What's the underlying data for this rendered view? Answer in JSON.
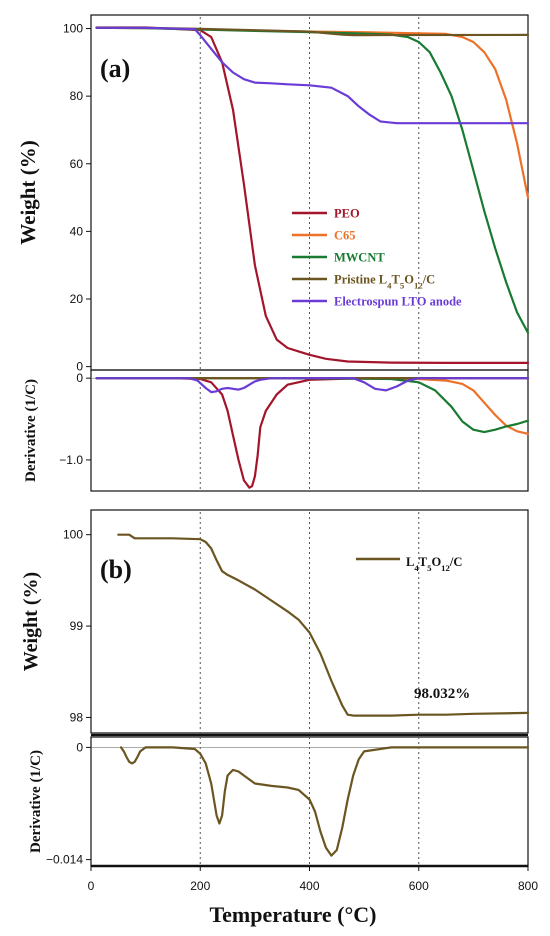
{
  "chart_data": [
    {
      "type": "line",
      "panel_label": "(a)",
      "xlabel": "Temperature (°C)",
      "x_ticks": [
        "0",
        "200",
        "400",
        "600",
        "800"
      ],
      "xlim": [
        0,
        800
      ],
      "gridlines_x": [
        200,
        400,
        600
      ],
      "legend_position": "center",
      "weight": {
        "ylabel": "Weight (%)",
        "ylim": [
          -1,
          104
        ],
        "y_ticks": [
          "0",
          "20",
          "40",
          "60",
          "80",
          "100"
        ],
        "series": [
          {
            "name": "PEO",
            "color": "#a3152a",
            "x": [
              10,
              100,
              200,
              220,
              240,
              260,
              280,
              300,
              320,
              340,
              360,
              380,
              400,
              430,
              470,
              550,
              650,
              800
            ],
            "y": [
              100.3,
              100.3,
              99.5,
              97.5,
              90,
              76,
              54,
              30,
              15,
              8,
              5.5,
              4.5,
              3.5,
              2.3,
              1.5,
              1.2,
              1.1,
              1.1
            ]
          },
          {
            "name": "C65",
            "color": "#ed7127",
            "x": [
              10,
              100,
              200,
              300,
              400,
              500,
              600,
              650,
              680,
              700,
              720,
              740,
              760,
              780,
              800
            ],
            "y": [
              100.2,
              100.1,
              99.8,
              99.4,
              99.1,
              98.9,
              98.6,
              98.4,
              97.5,
              96,
              93,
              88,
              79,
              66,
              50
            ]
          },
          {
            "name": "MWCNT",
            "color": "#197a32",
            "x": [
              10,
              100,
              200,
              300,
              400,
              500,
              550,
              580,
              600,
              620,
              640,
              660,
              680,
              700,
              720,
              740,
              760,
              780,
              800
            ],
            "y": [
              100.2,
              100.1,
              99.7,
              99.3,
              98.9,
              98.5,
              98.2,
              97.5,
              96,
              93,
              87,
              80,
              70,
              58,
              46,
              35,
              25,
              16,
              10
            ]
          },
          {
            "name": "Pristine L₄T₅O₁₂/C",
            "color": "#6b5521",
            "x": [
              10,
              100,
              200,
              300,
              400,
              460,
              480,
              500,
              800
            ],
            "y": [
              100.2,
              100.2,
              99.9,
              99.5,
              99.1,
              98.2,
              98.05,
              98.05,
              98.1
            ]
          },
          {
            "name": "Electrospun LTO anode",
            "color": "#6a3bd6",
            "x": [
              10,
              100,
              190,
              200,
              220,
              240,
              260,
              280,
              300,
              330,
              360,
              400,
              440,
              470,
              490,
              510,
              530,
              560,
              600,
              650,
              700,
              800
            ],
            "y": [
              100.2,
              100.2,
              99.8,
              98,
              94,
              90,
              87,
              85,
              84,
              83.8,
              83.5,
              83.2,
              82.5,
              80,
              77,
              74.5,
              72.5,
              72,
              72,
              72,
              72,
              72
            ]
          }
        ]
      },
      "derivative": {
        "ylabel": "Derivative (1/C)",
        "ylim": [
          -1.38,
          0.1
        ],
        "y_ticks": [
          "0",
          "-1.0"
        ],
        "series": [
          {
            "name": "PEO",
            "color": "#a3152a",
            "x": [
              10,
              150,
              200,
              220,
              240,
              250,
              260,
              270,
              280,
              290,
              295,
              300,
              305,
              310,
              320,
              340,
              360,
              400,
              500,
              800
            ],
            "y": [
              0,
              0,
              -0.01,
              -0.05,
              -0.2,
              -0.4,
              -0.7,
              -1,
              -1.25,
              -1.34,
              -1.32,
              -1.2,
              -0.95,
              -0.6,
              -0.4,
              -0.2,
              -0.08,
              -0.02,
              0,
              0
            ]
          },
          {
            "name": "C65",
            "color": "#ed7127",
            "x": [
              10,
              300,
              500,
              600,
              650,
              680,
              700,
              720,
              740,
              760,
              780,
              800
            ],
            "y": [
              0,
              0,
              0,
              -0.01,
              -0.03,
              -0.07,
              -0.15,
              -0.3,
              -0.45,
              -0.58,
              -0.65,
              -0.68
            ]
          },
          {
            "name": "MWCNT",
            "color": "#197a32",
            "x": [
              10,
              300,
              550,
              600,
              630,
              660,
              680,
              700,
              720,
              740,
              760,
              780,
              800
            ],
            "y": [
              0,
              0,
              -0.01,
              -0.05,
              -0.15,
              -0.35,
              -0.53,
              -0.63,
              -0.66,
              -0.63,
              -0.59,
              -0.56,
              -0.52
            ]
          },
          {
            "name": "Pristine L₄T₅O₁₂/C",
            "color": "#6b5521",
            "x": [
              10,
              800
            ],
            "y": [
              0,
              0
            ]
          },
          {
            "name": "Electrospun LTO anode",
            "color": "#6a3bd6",
            "x": [
              10,
              180,
              195,
              210,
              220,
              230,
              240,
              250,
              260,
              270,
              280,
              290,
              300,
              310,
              330,
              350,
              400,
              450,
              480,
              500,
              520,
              540,
              560,
              580,
              600,
              800
            ],
            "y": [
              0,
              0,
              -0.03,
              -0.12,
              -0.17,
              -0.16,
              -0.13,
              -0.12,
              -0.13,
              -0.14,
              -0.12,
              -0.08,
              -0.04,
              -0.02,
              0,
              0,
              0,
              0,
              0,
              -0.05,
              -0.13,
              -0.15,
              -0.1,
              -0.03,
              0,
              0
            ]
          }
        ]
      }
    },
    {
      "type": "line",
      "panel_label": "(b)",
      "xlabel": "Temperature (°C)",
      "x_ticks": [
        "0",
        "200",
        "400",
        "600",
        "800"
      ],
      "xlim": [
        0,
        800
      ],
      "gridlines_x": [
        200,
        400,
        600
      ],
      "legend_position": "top-right",
      "annotation": "98.032%",
      "weight": {
        "ylabel": "Weight (%)",
        "ylim": [
          97.83,
          100.27
        ],
        "y_ticks": [
          "98",
          "99",
          "100"
        ],
        "series": [
          {
            "name": "L₄T₅O₁₂/C",
            "color": "#6b5521",
            "x": [
              50,
              70,
              80,
              100,
              150,
              200,
              210,
              220,
              230,
              240,
              250,
              270,
              300,
              330,
              360,
              380,
              400,
              420,
              440,
              460,
              470,
              480,
              500,
              550,
              600,
              650,
              700,
              800
            ],
            "y": [
              100,
              100,
              99.96,
              99.96,
              99.96,
              99.95,
              99.92,
              99.85,
              99.72,
              99.6,
              99.56,
              99.5,
              99.4,
              99.28,
              99.16,
              99.07,
              98.93,
              98.7,
              98.4,
              98.13,
              98.03,
              98.02,
              98.02,
              98.02,
              98.03,
              98.03,
              98.04,
              98.05
            ]
          }
        ]
      },
      "derivative": {
        "ylabel": "Derivative (1/C)",
        "ylim": [
          -0.0148,
          0.0013
        ],
        "y_ticks": [
          "0",
          "-0.014"
        ],
        "series": [
          {
            "name": "L₄T₅O₁₂/C",
            "color": "#6b5521",
            "x": [
              55,
              60,
              65,
              70,
              75,
              80,
              85,
              90,
              100,
              150,
              190,
              200,
              210,
              220,
              230,
              235,
              240,
              245,
              250,
              260,
              270,
              280,
              290,
              300,
              330,
              360,
              380,
              400,
              410,
              420,
              430,
              440,
              450,
              460,
              470,
              480,
              490,
              500,
              550,
              600,
              800
            ],
            "y": [
              0,
              -0.0005,
              -0.0012,
              -0.0018,
              -0.002,
              -0.0018,
              -0.0012,
              -0.0005,
              0,
              0,
              -0.0002,
              -0.0008,
              -0.002,
              -0.0045,
              -0.0085,
              -0.0095,
              -0.0085,
              -0.0055,
              -0.0035,
              -0.0028,
              -0.003,
              -0.0035,
              -0.004,
              -0.0045,
              -0.0048,
              -0.005,
              -0.0053,
              -0.0065,
              -0.008,
              -0.0105,
              -0.0125,
              -0.0135,
              -0.0128,
              -0.01,
              -0.0065,
              -0.0035,
              -0.0015,
              -0.0005,
              0,
              0,
              0
            ]
          }
        ]
      }
    }
  ]
}
